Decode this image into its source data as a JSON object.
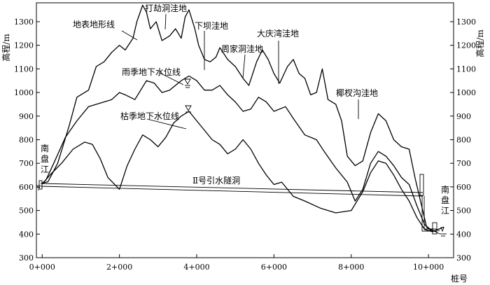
{
  "chart_data": {
    "type": "line",
    "y_axis_left_label": "高程/m",
    "y_axis_right_label": "高程/m",
    "x_axis_label": "桩号",
    "yticks": [
      "300",
      "400",
      "500",
      "600",
      "700",
      "800",
      "900",
      "1000",
      "1100",
      "1200",
      "1300"
    ],
    "ytick_values": [
      300,
      400,
      500,
      600,
      700,
      800,
      900,
      1000,
      1100,
      1200,
      1300
    ],
    "xticks": [
      "0+000",
      "2+000",
      "4+000",
      "6+000",
      "8+000",
      "10+000"
    ],
    "xtick_values": [
      0,
      2000,
      4000,
      6000,
      8000,
      10000
    ],
    "ylim": [
      300,
      1380
    ],
    "xlim": [
      -150,
      10650
    ],
    "series": [
      {
        "name": "地表地形线",
        "points": [
          [
            0,
            615
          ],
          [
            150,
            622
          ],
          [
            400,
            700
          ],
          [
            700,
            860
          ],
          [
            900,
            980
          ],
          [
            1200,
            1010
          ],
          [
            1400,
            1110
          ],
          [
            1600,
            1130
          ],
          [
            1800,
            1170
          ],
          [
            2000,
            1200
          ],
          [
            2150,
            1180
          ],
          [
            2350,
            1230
          ],
          [
            2450,
            1300
          ],
          [
            2600,
            1370
          ],
          [
            2700,
            1340
          ],
          [
            2800,
            1270
          ],
          [
            2950,
            1300
          ],
          [
            3100,
            1220
          ],
          [
            3300,
            1240
          ],
          [
            3450,
            1270
          ],
          [
            3600,
            1230
          ],
          [
            3700,
            1320
          ],
          [
            3800,
            1350
          ],
          [
            3950,
            1270
          ],
          [
            4050,
            1200
          ],
          [
            4200,
            1140
          ],
          [
            4350,
            1130
          ],
          [
            4500,
            1150
          ],
          [
            4600,
            1190
          ],
          [
            4800,
            1140
          ],
          [
            5000,
            1110
          ],
          [
            5200,
            1060
          ],
          [
            5350,
            1030
          ],
          [
            5550,
            1130
          ],
          [
            5700,
            1180
          ],
          [
            5850,
            1140
          ],
          [
            6000,
            1080
          ],
          [
            6150,
            1040
          ],
          [
            6350,
            1110
          ],
          [
            6500,
            1140
          ],
          [
            6650,
            1080
          ],
          [
            6800,
            1060
          ],
          [
            6950,
            990
          ],
          [
            7100,
            1000
          ],
          [
            7250,
            1100
          ],
          [
            7400,
            970
          ],
          [
            7600,
            950
          ],
          [
            7750,
            880
          ],
          [
            7900,
            730
          ],
          [
            8100,
            690
          ],
          [
            8300,
            710
          ],
          [
            8500,
            830
          ],
          [
            8700,
            910
          ],
          [
            8900,
            880
          ],
          [
            9100,
            800
          ],
          [
            9300,
            770
          ],
          [
            9500,
            760
          ],
          [
            9650,
            640
          ],
          [
            9750,
            570
          ],
          [
            9850,
            500
          ],
          [
            9950,
            430
          ],
          [
            10100,
            410
          ],
          [
            10250,
            420
          ],
          [
            10400,
            430
          ]
        ]
      },
      {
        "name": "雨季地下水位线",
        "points": [
          [
            0,
            615
          ],
          [
            100,
            630
          ],
          [
            300,
            700
          ],
          [
            600,
            810
          ],
          [
            900,
            880
          ],
          [
            1200,
            940
          ],
          [
            1500,
            955
          ],
          [
            1800,
            970
          ],
          [
            2000,
            1000
          ],
          [
            2150,
            990
          ],
          [
            2400,
            970
          ],
          [
            2700,
            1050
          ],
          [
            2900,
            1040
          ],
          [
            3100,
            1000
          ],
          [
            3300,
            1010
          ],
          [
            3600,
            1050
          ],
          [
            3800,
            1070
          ],
          [
            4000,
            1050
          ],
          [
            4200,
            1010
          ],
          [
            4400,
            1010
          ],
          [
            4600,
            1030
          ],
          [
            4800,
            990
          ],
          [
            5000,
            960
          ],
          [
            5200,
            920
          ],
          [
            5400,
            930
          ],
          [
            5600,
            980
          ],
          [
            5800,
            960
          ],
          [
            6000,
            920
          ],
          [
            6300,
            940
          ],
          [
            6500,
            890
          ],
          [
            6800,
            820
          ],
          [
            7100,
            800
          ],
          [
            7300,
            750
          ],
          [
            7600,
            680
          ],
          [
            7900,
            620
          ],
          [
            8100,
            540
          ],
          [
            8300,
            590
          ],
          [
            8500,
            700
          ],
          [
            8700,
            750
          ],
          [
            8900,
            730
          ],
          [
            9100,
            690
          ],
          [
            9300,
            640
          ],
          [
            9500,
            610
          ],
          [
            9700,
            520
          ],
          [
            9900,
            440
          ],
          [
            10050,
            420
          ],
          [
            10200,
            410
          ]
        ]
      },
      {
        "name": "枯季地下水位线",
        "points": [
          [
            0,
            612
          ],
          [
            200,
            650
          ],
          [
            500,
            700
          ],
          [
            800,
            760
          ],
          [
            1100,
            790
          ],
          [
            1300,
            780
          ],
          [
            1500,
            720
          ],
          [
            1700,
            640
          ],
          [
            2000,
            590
          ],
          [
            2200,
            690
          ],
          [
            2400,
            760
          ],
          [
            2600,
            820
          ],
          [
            2800,
            800
          ],
          [
            3000,
            770
          ],
          [
            3200,
            810
          ],
          [
            3400,
            870
          ],
          [
            3600,
            900
          ],
          [
            3800,
            920
          ],
          [
            4000,
            880
          ],
          [
            4200,
            840
          ],
          [
            4400,
            800
          ],
          [
            4600,
            780
          ],
          [
            4800,
            740
          ],
          [
            5000,
            760
          ],
          [
            5200,
            800
          ],
          [
            5400,
            760
          ],
          [
            5600,
            700
          ],
          [
            5800,
            650
          ],
          [
            6000,
            610
          ],
          [
            6200,
            620
          ],
          [
            6500,
            560
          ],
          [
            6800,
            540
          ],
          [
            7200,
            510
          ],
          [
            7600,
            490
          ],
          [
            8000,
            500
          ],
          [
            8300,
            580
          ],
          [
            8500,
            660
          ],
          [
            8700,
            710
          ],
          [
            8900,
            700
          ],
          [
            9100,
            650
          ],
          [
            9300,
            590
          ],
          [
            9500,
            540
          ],
          [
            9700,
            470
          ],
          [
            9900,
            420
          ],
          [
            10100,
            410
          ]
        ]
      }
    ]
  },
  "annotations": {
    "surface_line": "地表地形线",
    "dajie_dong": "打劫洞洼地",
    "xiaba": "下坝洼地",
    "zhoujiadong": "周家洞洼地",
    "daqingwan": "大庆湾洼地",
    "yachagou": "椰杈沟洼地",
    "wet_water_table": "雨季地下水位线",
    "dry_water_table": "枯季地下水位线",
    "tunnel": "Ⅱ号引水隧洞",
    "river_left": [
      "南",
      "盘",
      "江"
    ],
    "river_right": [
      "南",
      "盘",
      "江"
    ]
  }
}
